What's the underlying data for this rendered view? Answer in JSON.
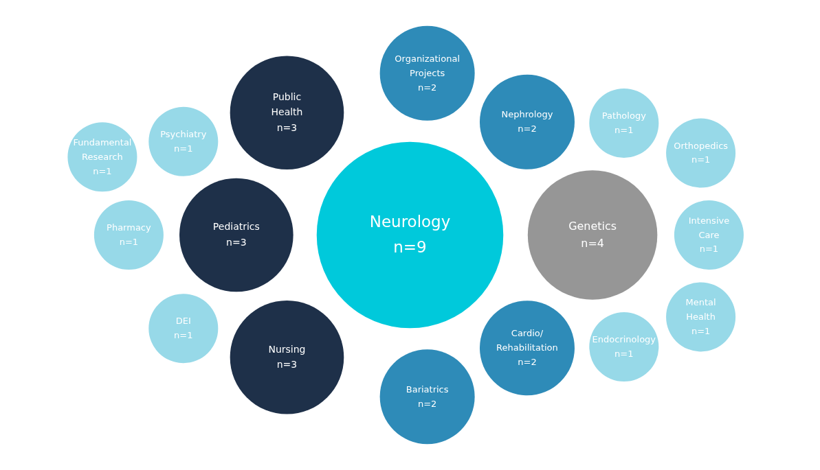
{
  "chart_data": {
    "type": "other",
    "categories": [
      "Neurology",
      "Genetics",
      "Pediatrics",
      "Public Health",
      "Nursing",
      "Cardio/Rehabilitation",
      "Nephrology",
      "Bariatrics",
      "Organizational Projects",
      "Pharmacy",
      "Psychiatry",
      "DEI",
      "Endocrinology",
      "Pathology",
      "Intensive Care",
      "Mental Health",
      "Orthopedics",
      "Fundamental Research"
    ],
    "values": [
      9,
      4,
      3,
      3,
      3,
      2,
      2,
      2,
      2,
      1,
      1,
      1,
      1,
      1,
      1,
      1,
      1,
      1
    ],
    "value_labels": [
      "n=9",
      "n=4",
      "n=3",
      "n=3",
      "n=3",
      "n=2",
      "n=2",
      "n=2",
      "n=2",
      "n=1",
      "n=1",
      "n=1",
      "n=1",
      "n=1",
      "n=1",
      "n=1",
      "n=1",
      "n=1"
    ],
    "colors": [
      "#00c9db",
      "#969696",
      "#1e3049",
      "#1e3049",
      "#1e3049",
      "#2e8bb8",
      "#2e8bb8",
      "#2e8bb8",
      "#2e8bb8",
      "#97d9e8",
      "#97d9e8",
      "#97d9e8",
      "#97d9e8",
      "#97d9e8",
      "#97d9e8",
      "#97d9e8",
      "#97d9e8",
      "#97d9e8"
    ]
  }
}
